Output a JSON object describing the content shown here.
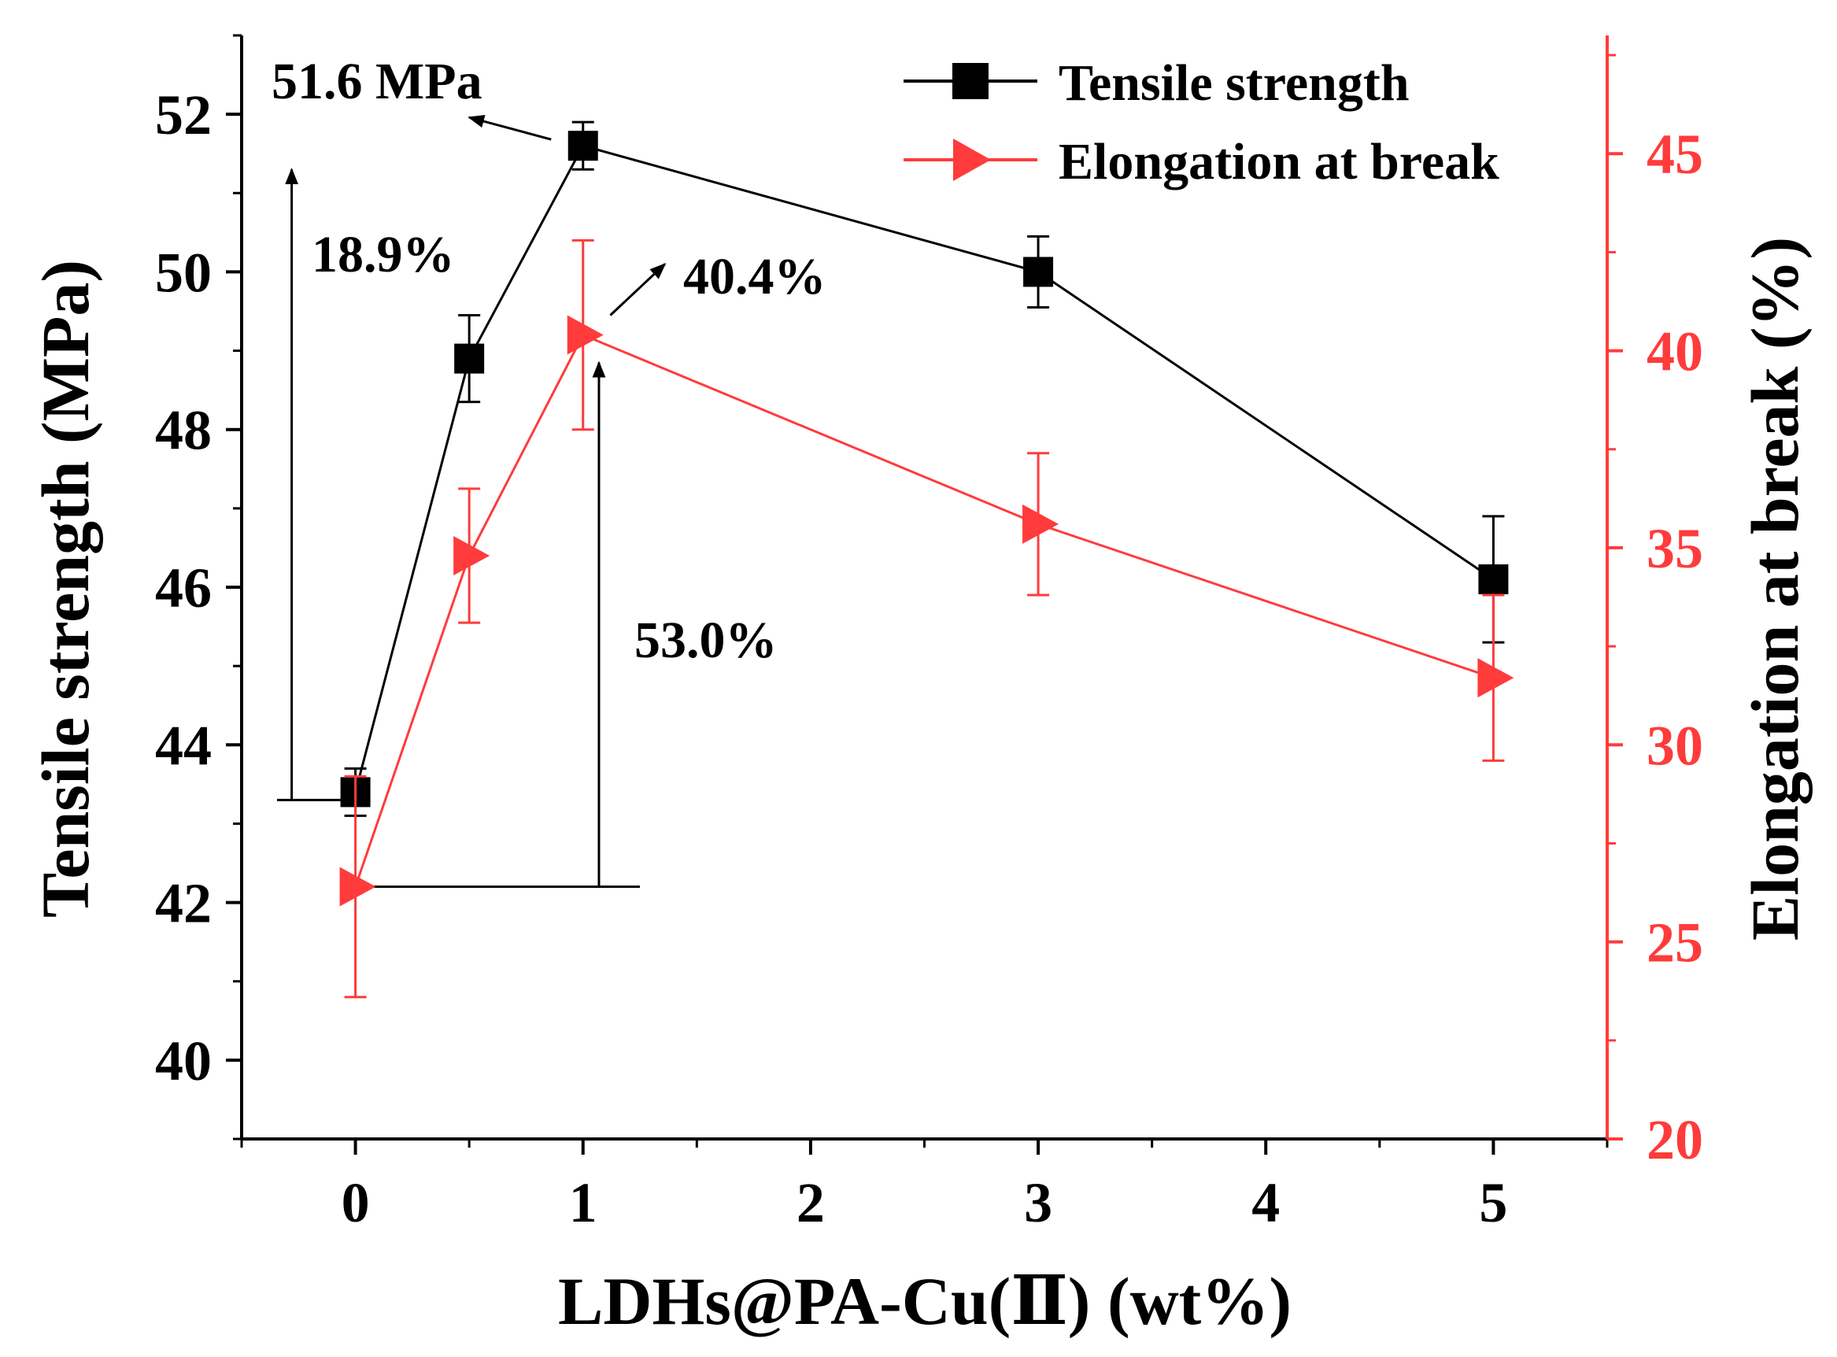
{
  "chart_data": {
    "type": "line",
    "x": [
      0,
      0.5,
      1,
      3,
      5
    ],
    "xlabel": "LDHs@PA-Cu(Ⅱ) (wt%)",
    "xlim": [
      -0.5,
      5.5
    ],
    "x_ticks": [
      0,
      1,
      2,
      3,
      4,
      5
    ],
    "x_tick_labels": [
      "0",
      "1",
      "2",
      "3",
      "4",
      "5"
    ],
    "y_left": {
      "label": "Tensile strength (MPa)",
      "lim": [
        39,
        53
      ],
      "ticks": [
        40,
        42,
        44,
        46,
        48,
        50,
        52
      ],
      "tick_labels": [
        "40",
        "42",
        "44",
        "46",
        "48",
        "50",
        "52"
      ],
      "color": "#000000"
    },
    "y_right": {
      "label": "Elongation at break (%)",
      "lim": [
        20,
        48
      ],
      "ticks": [
        20,
        25,
        30,
        35,
        40,
        45
      ],
      "tick_labels": [
        "20",
        "25",
        "30",
        "35",
        "40",
        "45"
      ],
      "color": "#ff3b3b"
    },
    "series": [
      {
        "name": "Tensile strength",
        "axis": "left",
        "marker": "square",
        "color": "#000000",
        "values": [
          43.4,
          48.9,
          51.6,
          50.0,
          46.1
        ],
        "errors": [
          0.3,
          0.55,
          0.3,
          0.45,
          0.8
        ]
      },
      {
        "name": "Elongation at break",
        "axis": "right",
        "marker": "triangle-right",
        "color": "#ff3b3b",
        "values": [
          26.4,
          34.8,
          40.4,
          35.6,
          31.7
        ],
        "errors": [
          2.8,
          1.7,
          2.4,
          1.8,
          2.1
        ]
      }
    ],
    "annotations": {
      "peak_ts": "51.6 MPa",
      "ts_increase": "18.9%",
      "peak_el": "40.4%",
      "el_increase": "53.0%"
    },
    "legend_position": "top-right"
  }
}
